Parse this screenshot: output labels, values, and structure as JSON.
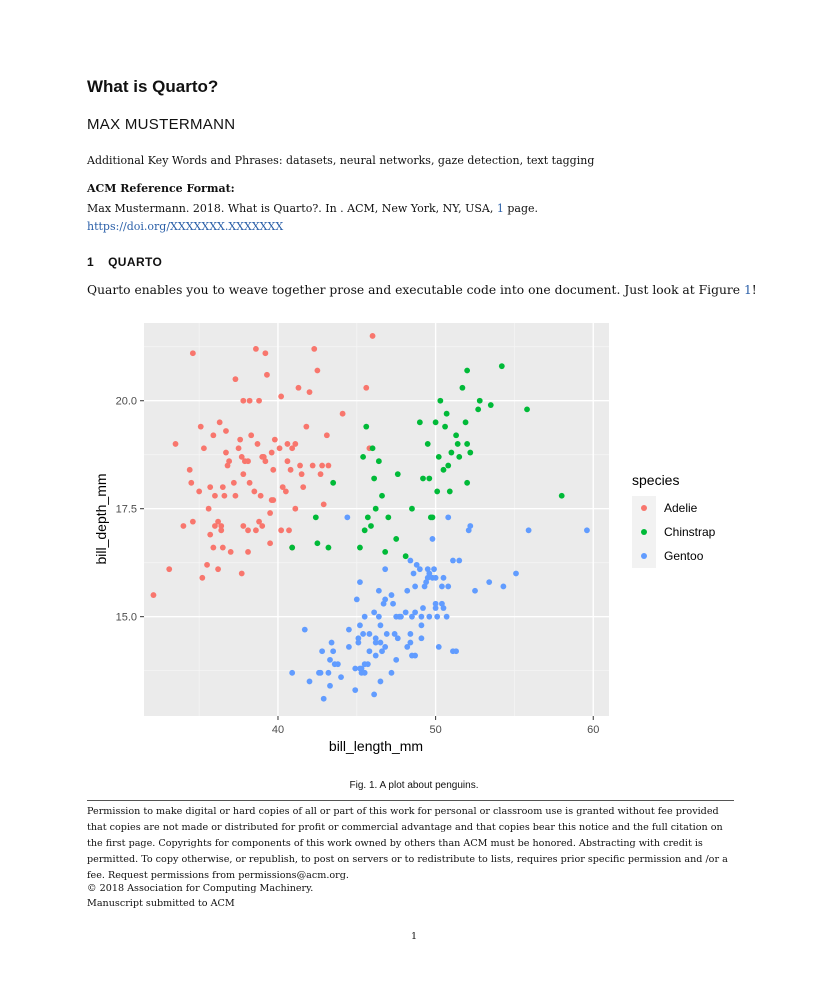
{
  "paper": {
    "title": "What is Quarto?",
    "author": "MAX MUSTERMANN",
    "keywords": "Additional Key Words and Phrases: datasets, neural networks, gaze detection, text tagging",
    "acm_heading": "ACM Reference Format:",
    "acm_text_before": "Max Mustermann. 2018. What is Quarto?. In . ACM, New York, NY, USA, ",
    "acm_pages_link": "1",
    "acm_text_after": " page. ",
    "acm_doi": "https://doi.org/XXXXXXX.XXXXXXX",
    "section_number": "1",
    "section_title": "QUARTO",
    "body_before": "Quarto enables you to weave together prose and executable code into one document. Just look at Figure ",
    "body_ref": "1",
    "body_after": "!",
    "caption": "Fig. 1.  A plot about penguins.",
    "permission": "Permission to make digital or hard copies of all or part of this work for personal or classroom use is granted without fee provided that copies are not made or distributed for profit or commercial advantage and that copies bear this notice and the full citation on the first page. Copyrights for components of this work owned by others than ACM must be honored. Abstracting with credit is permitted. To copy otherwise, or republish, to post on servers or to redistribute to lists, requires prior specific permission and /or a fee. Request permissions from permissions@acm.org.",
    "copyright": "© 2018 Association for Computing Machinery.",
    "manuscript": "Manuscript submitted to ACM",
    "page_number": "1"
  },
  "chart_data": {
    "type": "scatter",
    "xlabel": "bill_length_mm",
    "ylabel": "bill_depth_mm",
    "xlim": [
      31.5,
      61
    ],
    "ylim": [
      12.7,
      21.8
    ],
    "x_ticks": [
      40,
      50,
      60
    ],
    "y_ticks": [
      15.0,
      17.5,
      20.0
    ],
    "x_tick_labels": [
      "40",
      "50",
      "60"
    ],
    "y_tick_labels": [
      "15.0",
      "17.5",
      "20.0"
    ],
    "grid": true,
    "legend_title": "species",
    "legend_position": "right",
    "series": [
      {
        "name": "Adelie",
        "color": "#F8766D",
        "points": [
          [
            32.1,
            15.5
          ],
          [
            33.1,
            16.1
          ],
          [
            33.5,
            19.0
          ],
          [
            34.0,
            17.1
          ],
          [
            34.4,
            18.4
          ],
          [
            34.5,
            18.1
          ],
          [
            34.6,
            17.2
          ],
          [
            34.6,
            21.1
          ],
          [
            35.0,
            17.9
          ],
          [
            35.1,
            19.4
          ],
          [
            35.2,
            15.9
          ],
          [
            35.3,
            18.9
          ],
          [
            35.5,
            16.2
          ],
          [
            35.6,
            17.5
          ],
          [
            35.7,
            16.9
          ],
          [
            35.7,
            18.0
          ],
          [
            35.9,
            16.6
          ],
          [
            35.9,
            19.2
          ],
          [
            36.0,
            17.1
          ],
          [
            36.0,
            17.8
          ],
          [
            36.2,
            16.1
          ],
          [
            36.2,
            17.2
          ],
          [
            36.3,
            19.5
          ],
          [
            36.4,
            17.0
          ],
          [
            36.4,
            17.1
          ],
          [
            36.5,
            16.6
          ],
          [
            36.5,
            18.0
          ],
          [
            36.6,
            17.8
          ],
          [
            36.7,
            18.8
          ],
          [
            36.7,
            19.3
          ],
          [
            36.8,
            18.5
          ],
          [
            36.9,
            18.6
          ],
          [
            37.0,
            16.5
          ],
          [
            37.2,
            18.1
          ],
          [
            37.3,
            17.8
          ],
          [
            37.3,
            20.5
          ],
          [
            37.5,
            18.9
          ],
          [
            37.6,
            19.1
          ],
          [
            37.7,
            16.0
          ],
          [
            37.7,
            18.7
          ],
          [
            37.8,
            17.1
          ],
          [
            37.8,
            18.3
          ],
          [
            37.8,
            20.0
          ],
          [
            37.9,
            18.6
          ],
          [
            38.1,
            16.5
          ],
          [
            38.1,
            17.0
          ],
          [
            38.1,
            18.6
          ],
          [
            38.2,
            18.1
          ],
          [
            38.2,
            20.0
          ],
          [
            38.3,
            19.2
          ],
          [
            38.5,
            17.9
          ],
          [
            38.6,
            17.0
          ],
          [
            38.6,
            21.2
          ],
          [
            38.7,
            19.0
          ],
          [
            38.8,
            17.2
          ],
          [
            38.8,
            20.0
          ],
          [
            38.9,
            17.8
          ],
          [
            39.0,
            17.1
          ],
          [
            39.0,
            18.7
          ],
          [
            39.1,
            18.7
          ],
          [
            39.2,
            18.6
          ],
          [
            39.2,
            21.1
          ],
          [
            39.3,
            20.6
          ],
          [
            39.5,
            16.7
          ],
          [
            39.5,
            17.4
          ],
          [
            39.6,
            17.7
          ],
          [
            39.6,
            18.8
          ],
          [
            39.7,
            17.7
          ],
          [
            39.7,
            18.4
          ],
          [
            39.8,
            19.1
          ],
          [
            40.1,
            18.9
          ],
          [
            40.2,
            17.0
          ],
          [
            40.2,
            20.1
          ],
          [
            40.3,
            18.0
          ],
          [
            40.5,
            17.9
          ],
          [
            40.6,
            18.6
          ],
          [
            40.6,
            19.0
          ],
          [
            40.7,
            17.0
          ],
          [
            40.8,
            18.4
          ],
          [
            40.9,
            16.6
          ],
          [
            40.9,
            18.9
          ],
          [
            41.1,
            17.5
          ],
          [
            41.1,
            19.0
          ],
          [
            41.3,
            20.3
          ],
          [
            41.4,
            18.5
          ],
          [
            41.5,
            18.3
          ],
          [
            41.6,
            18.0
          ],
          [
            41.8,
            19.4
          ],
          [
            42.0,
            20.2
          ],
          [
            42.2,
            18.5
          ],
          [
            42.3,
            21.2
          ],
          [
            42.5,
            20.7
          ],
          [
            42.7,
            18.3
          ],
          [
            42.8,
            18.5
          ],
          [
            42.9,
            17.6
          ],
          [
            43.1,
            19.2
          ],
          [
            43.2,
            18.5
          ],
          [
            44.1,
            19.7
          ],
          [
            45.6,
            20.3
          ],
          [
            45.8,
            18.9
          ],
          [
            46.0,
            21.5
          ]
        ]
      },
      {
        "name": "Chinstrap",
        "color": "#00BA38",
        "points": [
          [
            40.9,
            16.6
          ],
          [
            42.4,
            17.3
          ],
          [
            42.5,
            16.7
          ],
          [
            43.2,
            16.6
          ],
          [
            43.5,
            18.1
          ],
          [
            45.2,
            16.6
          ],
          [
            45.4,
            18.7
          ],
          [
            45.5,
            17.0
          ],
          [
            45.6,
            19.4
          ],
          [
            45.7,
            17.3
          ],
          [
            45.9,
            17.1
          ],
          [
            46.0,
            18.9
          ],
          [
            46.1,
            18.2
          ],
          [
            46.2,
            17.5
          ],
          [
            46.4,
            18.6
          ],
          [
            46.6,
            17.8
          ],
          [
            46.8,
            16.5
          ],
          [
            47.0,
            17.3
          ],
          [
            47.5,
            16.8
          ],
          [
            47.6,
            18.3
          ],
          [
            48.1,
            16.4
          ],
          [
            48.5,
            17.5
          ],
          [
            49.0,
            19.5
          ],
          [
            49.2,
            18.2
          ],
          [
            49.5,
            19.0
          ],
          [
            49.6,
            18.2
          ],
          [
            49.7,
            17.3
          ],
          [
            49.8,
            17.3
          ],
          [
            50.0,
            19.5
          ],
          [
            50.1,
            17.9
          ],
          [
            50.2,
            18.7
          ],
          [
            50.3,
            20.0
          ],
          [
            50.5,
            18.4
          ],
          [
            50.6,
            19.4
          ],
          [
            50.7,
            19.7
          ],
          [
            50.8,
            18.5
          ],
          [
            50.9,
            17.9
          ],
          [
            51.0,
            18.8
          ],
          [
            51.3,
            19.2
          ],
          [
            51.4,
            19.0
          ],
          [
            51.5,
            18.7
          ],
          [
            51.7,
            20.3
          ],
          [
            51.9,
            19.5
          ],
          [
            52.0,
            18.1
          ],
          [
            52.0,
            19.0
          ],
          [
            52.0,
            20.7
          ],
          [
            52.2,
            18.8
          ],
          [
            52.7,
            19.8
          ],
          [
            52.8,
            20.0
          ],
          [
            53.5,
            19.9
          ],
          [
            54.2,
            20.8
          ],
          [
            55.8,
            19.8
          ],
          [
            58.0,
            17.8
          ]
        ]
      },
      {
        "name": "Gentoo",
        "color": "#619CFF",
        "points": [
          [
            40.9,
            13.7
          ],
          [
            41.7,
            14.7
          ],
          [
            42.0,
            13.5
          ],
          [
            42.6,
            13.7
          ],
          [
            42.7,
            13.7
          ],
          [
            42.8,
            14.2
          ],
          [
            42.9,
            13.1
          ],
          [
            43.2,
            13.7
          ],
          [
            43.3,
            13.4
          ],
          [
            43.3,
            14.0
          ],
          [
            43.4,
            14.4
          ],
          [
            43.5,
            14.2
          ],
          [
            43.6,
            13.9
          ],
          [
            43.8,
            13.9
          ],
          [
            44.0,
            13.6
          ],
          [
            44.4,
            17.3
          ],
          [
            44.5,
            14.3
          ],
          [
            44.5,
            14.7
          ],
          [
            44.9,
            13.3
          ],
          [
            44.9,
            13.8
          ],
          [
            45.0,
            15.4
          ],
          [
            45.1,
            14.4
          ],
          [
            45.1,
            14.5
          ],
          [
            45.2,
            13.8
          ],
          [
            45.2,
            14.8
          ],
          [
            45.2,
            15.8
          ],
          [
            45.3,
            13.7
          ],
          [
            45.3,
            13.8
          ],
          [
            45.4,
            14.6
          ],
          [
            45.5,
            13.7
          ],
          [
            45.5,
            13.9
          ],
          [
            45.5,
            15.0
          ],
          [
            45.7,
            13.9
          ],
          [
            45.8,
            14.2
          ],
          [
            45.8,
            14.6
          ],
          [
            46.1,
            13.2
          ],
          [
            46.1,
            15.1
          ],
          [
            46.2,
            14.1
          ],
          [
            46.2,
            14.4
          ],
          [
            46.2,
            14.5
          ],
          [
            46.4,
            15.0
          ],
          [
            46.4,
            15.6
          ],
          [
            46.5,
            13.5
          ],
          [
            46.5,
            14.4
          ],
          [
            46.5,
            14.8
          ],
          [
            46.6,
            14.2
          ],
          [
            46.7,
            15.3
          ],
          [
            46.8,
            14.3
          ],
          [
            46.8,
            15.4
          ],
          [
            46.8,
            16.1
          ],
          [
            46.9,
            14.6
          ],
          [
            47.2,
            13.7
          ],
          [
            47.2,
            15.5
          ],
          [
            47.3,
            15.3
          ],
          [
            47.4,
            14.6
          ],
          [
            47.5,
            14.0
          ],
          [
            47.5,
            15.0
          ],
          [
            47.6,
            14.5
          ],
          [
            47.7,
            15.0
          ],
          [
            47.8,
            15.0
          ],
          [
            48.1,
            15.1
          ],
          [
            48.2,
            14.3
          ],
          [
            48.2,
            15.6
          ],
          [
            48.4,
            14.4
          ],
          [
            48.4,
            14.6
          ],
          [
            48.4,
            16.3
          ],
          [
            48.5,
            14.1
          ],
          [
            48.5,
            15.0
          ],
          [
            48.6,
            16.0
          ],
          [
            48.7,
            14.1
          ],
          [
            48.7,
            15.1
          ],
          [
            48.7,
            15.7
          ],
          [
            48.8,
            16.2
          ],
          [
            49.0,
            16.1
          ],
          [
            49.1,
            14.5
          ],
          [
            49.1,
            14.8
          ],
          [
            49.1,
            15.0
          ],
          [
            49.2,
            15.2
          ],
          [
            49.3,
            15.7
          ],
          [
            49.4,
            15.8
          ],
          [
            49.5,
            15.9
          ],
          [
            49.5,
            16.1
          ],
          [
            49.6,
            15.0
          ],
          [
            49.6,
            16.0
          ],
          [
            49.8,
            15.9
          ],
          [
            49.8,
            16.8
          ],
          [
            49.9,
            16.1
          ],
          [
            50.0,
            15.2
          ],
          [
            50.0,
            15.3
          ],
          [
            50.0,
            15.9
          ],
          [
            50.1,
            15.0
          ],
          [
            50.2,
            14.3
          ],
          [
            50.4,
            15.3
          ],
          [
            50.4,
            15.7
          ],
          [
            50.5,
            15.2
          ],
          [
            50.5,
            15.9
          ],
          [
            50.7,
            15.0
          ],
          [
            50.8,
            15.7
          ],
          [
            50.8,
            17.3
          ],
          [
            51.1,
            14.2
          ],
          [
            51.1,
            16.3
          ],
          [
            51.3,
            14.2
          ],
          [
            51.5,
            16.3
          ],
          [
            52.1,
            17.0
          ],
          [
            52.2,
            17.1
          ],
          [
            52.5,
            15.6
          ],
          [
            53.4,
            15.8
          ],
          [
            54.3,
            15.7
          ],
          [
            55.1,
            16.0
          ],
          [
            55.9,
            17.0
          ],
          [
            59.6,
            17.0
          ]
        ]
      }
    ]
  }
}
